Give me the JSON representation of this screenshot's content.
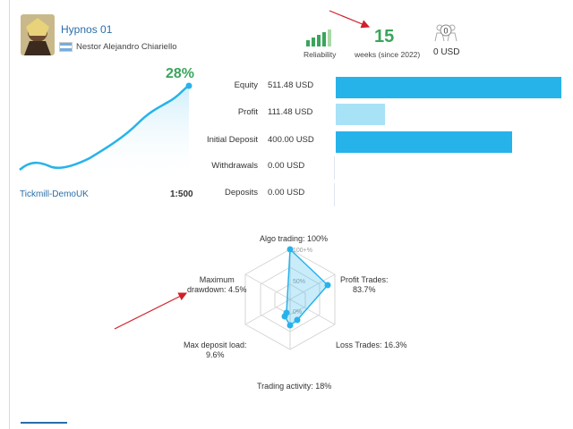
{
  "profile": {
    "name": "Hypnos 01",
    "author": "Nestor Alejandro Chiariello"
  },
  "stats_header": {
    "reliability_label": "Reliability",
    "weeks_value": "15",
    "weeks_label": "weeks (since 2022)",
    "subscribers_count": "0",
    "subscribers_funds": "0 USD"
  },
  "growth": {
    "percent": "28%",
    "broker": "Tickmill-DemoUK",
    "leverage": "1:500"
  },
  "balances": [
    {
      "label": "Equity",
      "value": "511.48 USD",
      "amount": 511.48
    },
    {
      "label": "Profit",
      "value": "111.48 USD",
      "amount": 111.48
    },
    {
      "label": "Initial Deposit",
      "value": "400.00 USD",
      "amount": 400.0
    },
    {
      "label": "Withdrawals",
      "value": "0.00 USD",
      "amount": 0
    },
    {
      "label": "Deposits",
      "value": "0.00 USD",
      "amount": 0
    }
  ],
  "radar": {
    "ring_labels": {
      "outer": "100+%",
      "mid": "50%",
      "inner": "0%"
    },
    "algo": "Algo trading: 100%",
    "profit_1": "Profit Trades:",
    "profit_2": "83.7%",
    "loss": "Loss Trades: 16.3%",
    "activity": "Trading activity: 18%",
    "maxdep_1": "Max deposit load:",
    "maxdep_2": "9.6%",
    "drawdown_1": "Maximum",
    "drawdown_2": "drawdown: 4.5%",
    "values": {
      "algo": 100,
      "profit": 83.7,
      "loss": 16.3,
      "activity": 18,
      "max_deposit_load": 9.6,
      "max_drawdown": 4.5
    }
  },
  "colors": {
    "accent": "#26b3ea",
    "accent_light": "#a8e2f7",
    "green": "#3ba55c",
    "link": "#2a6ea8",
    "arrow": "#d0202a"
  }
}
